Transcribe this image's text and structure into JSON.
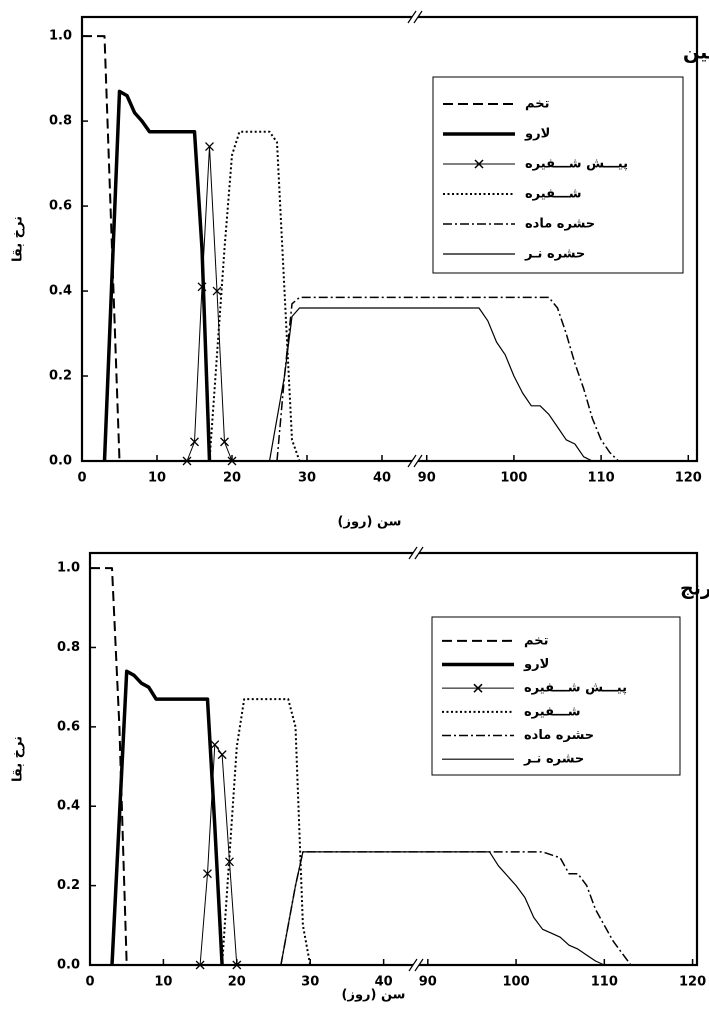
{
  "chart_data": [
    {
      "type": "line",
      "title": "نـــارنگی کلمــــانتین",
      "xlabel": "سن (روز)",
      "ylabel": "نرخ بقا",
      "xlim": [
        0,
        121
      ],
      "xbreak": [
        44,
        89
      ],
      "ylim": [
        0,
        1.045
      ],
      "xticks": [
        0,
        10,
        20,
        30,
        40,
        90,
        100,
        110,
        120
      ],
      "yticks": [
        {
          "value": 0,
          "label": "0.0"
        },
        0.2,
        0.4,
        0.6,
        0.8,
        {
          "value": 1,
          "label": "1.0"
        }
      ],
      "series": [
        {
          "name": "تخم",
          "color": "#000000",
          "style": "dashed",
          "width": 2,
          "x": [
            0,
            3,
            4,
            5
          ],
          "values": [
            1,
            1,
            0.5,
            0
          ]
        },
        {
          "name": "لارو",
          "color": "#000000",
          "style": "solid",
          "width": 3.5,
          "x": [
            3,
            5,
            6,
            7,
            8,
            9,
            15,
            16,
            17
          ],
          "values": [
            0,
            0.87,
            0.86,
            0.82,
            0.8,
            0.775,
            0.775,
            0.5,
            0
          ]
        },
        {
          "name": "پیـــش شـــفیره",
          "color": "#000000",
          "style": "solid",
          "width": 1,
          "marker": "x",
          "x": [
            14,
            15,
            16,
            17,
            18,
            19,
            20
          ],
          "values": [
            0,
            0.045,
            0.41,
            0.74,
            0.4,
            0.045,
            0
          ]
        },
        {
          "name": "شـــفیره",
          "color": "#000000",
          "style": "dotted",
          "width": 2,
          "x": [
            17,
            19,
            20,
            21,
            25,
            26,
            27,
            28,
            29
          ],
          "values": [
            0,
            0.5,
            0.72,
            0.775,
            0.775,
            0.75,
            0.4,
            0.05,
            0
          ]
        },
        {
          "name": "حشره ماده",
          "color": "#000000",
          "style": "dashdot",
          "width": 1.5,
          "x": [
            26,
            27,
            28,
            29,
            104,
            105,
            106,
            107,
            108,
            109,
            110,
            111,
            112
          ],
          "values": [
            0,
            0.2,
            0.37,
            0.385,
            0.385,
            0.36,
            0.3,
            0.23,
            0.17,
            0.1,
            0.05,
            0.02,
            0
          ]
        },
        {
          "name": "حشره نـر",
          "color": "#000000",
          "style": "solid",
          "width": 1.2,
          "x": [
            25,
            27,
            28,
            29,
            96,
            97,
            98,
            99,
            100,
            101,
            102,
            103,
            104,
            105,
            106,
            107,
            108,
            109
          ],
          "values": [
            0,
            0.2,
            0.34,
            0.36,
            0.36,
            0.33,
            0.28,
            0.25,
            0.2,
            0.16,
            0.13,
            0.13,
            0.11,
            0.08,
            0.05,
            0.04,
            0.01,
            0
          ]
        }
      ]
    },
    {
      "type": "line",
      "title": "نـــارنج",
      "xlabel": "سن (روز)",
      "ylabel": "نرخ بقا",
      "xlim": [
        0,
        120.5
      ],
      "xbreak": [
        44,
        89
      ],
      "ylim": [
        0,
        1.038
      ],
      "xticks": [
        0,
        10,
        20,
        30,
        40,
        90,
        100,
        110,
        120
      ],
      "yticks": [
        {
          "value": 0,
          "label": "0.0"
        },
        0.2,
        0.4,
        0.6,
        0.8,
        {
          "value": 1,
          "label": "1.0"
        }
      ],
      "series": [
        {
          "name": "تخم",
          "color": "#000000",
          "style": "dashed",
          "width": 2,
          "x": [
            0,
            3,
            4,
            5
          ],
          "values": [
            1,
            1,
            0.6,
            0
          ]
        },
        {
          "name": "لارو",
          "color": "#000000",
          "style": "solid",
          "width": 3.5,
          "x": [
            3,
            5,
            6,
            7,
            8,
            9,
            16,
            17,
            18
          ],
          "values": [
            0,
            0.74,
            0.73,
            0.71,
            0.7,
            0.67,
            0.67,
            0.35,
            0
          ]
        },
        {
          "name": "پیـــش شـــفیره",
          "color": "#000000",
          "style": "solid",
          "width": 1,
          "marker": "x",
          "x": [
            15,
            16,
            17,
            18,
            19,
            20
          ],
          "values": [
            0,
            0.23,
            0.555,
            0.53,
            0.26,
            0
          ]
        },
        {
          "name": "شـــفیره",
          "color": "#000000",
          "style": "dotted",
          "width": 2,
          "x": [
            18,
            20,
            21,
            27,
            28,
            29,
            30
          ],
          "values": [
            0,
            0.55,
            0.67,
            0.67,
            0.6,
            0.1,
            0
          ]
        },
        {
          "name": "حشره ماده",
          "color": "#000000",
          "style": "dashdot",
          "width": 1.5,
          "x": [
            26,
            28,
            29,
            103,
            105,
            106,
            107,
            108,
            109,
            110,
            111,
            112,
            113
          ],
          "values": [
            0,
            0.2,
            0.285,
            0.285,
            0.27,
            0.23,
            0.23,
            0.2,
            0.14,
            0.1,
            0.06,
            0.03,
            0
          ]
        },
        {
          "name": "حشره نـر",
          "color": "#000000",
          "style": "solid",
          "width": 1.2,
          "x": [
            26,
            28,
            29,
            97,
            98,
            100,
            101,
            102,
            103,
            104,
            105,
            106,
            107,
            108,
            109,
            110
          ],
          "values": [
            0,
            0.2,
            0.285,
            0.285,
            0.25,
            0.2,
            0.17,
            0.12,
            0.09,
            0.08,
            0.07,
            0.05,
            0.04,
            0.025,
            0.01,
            0
          ]
        }
      ]
    }
  ]
}
